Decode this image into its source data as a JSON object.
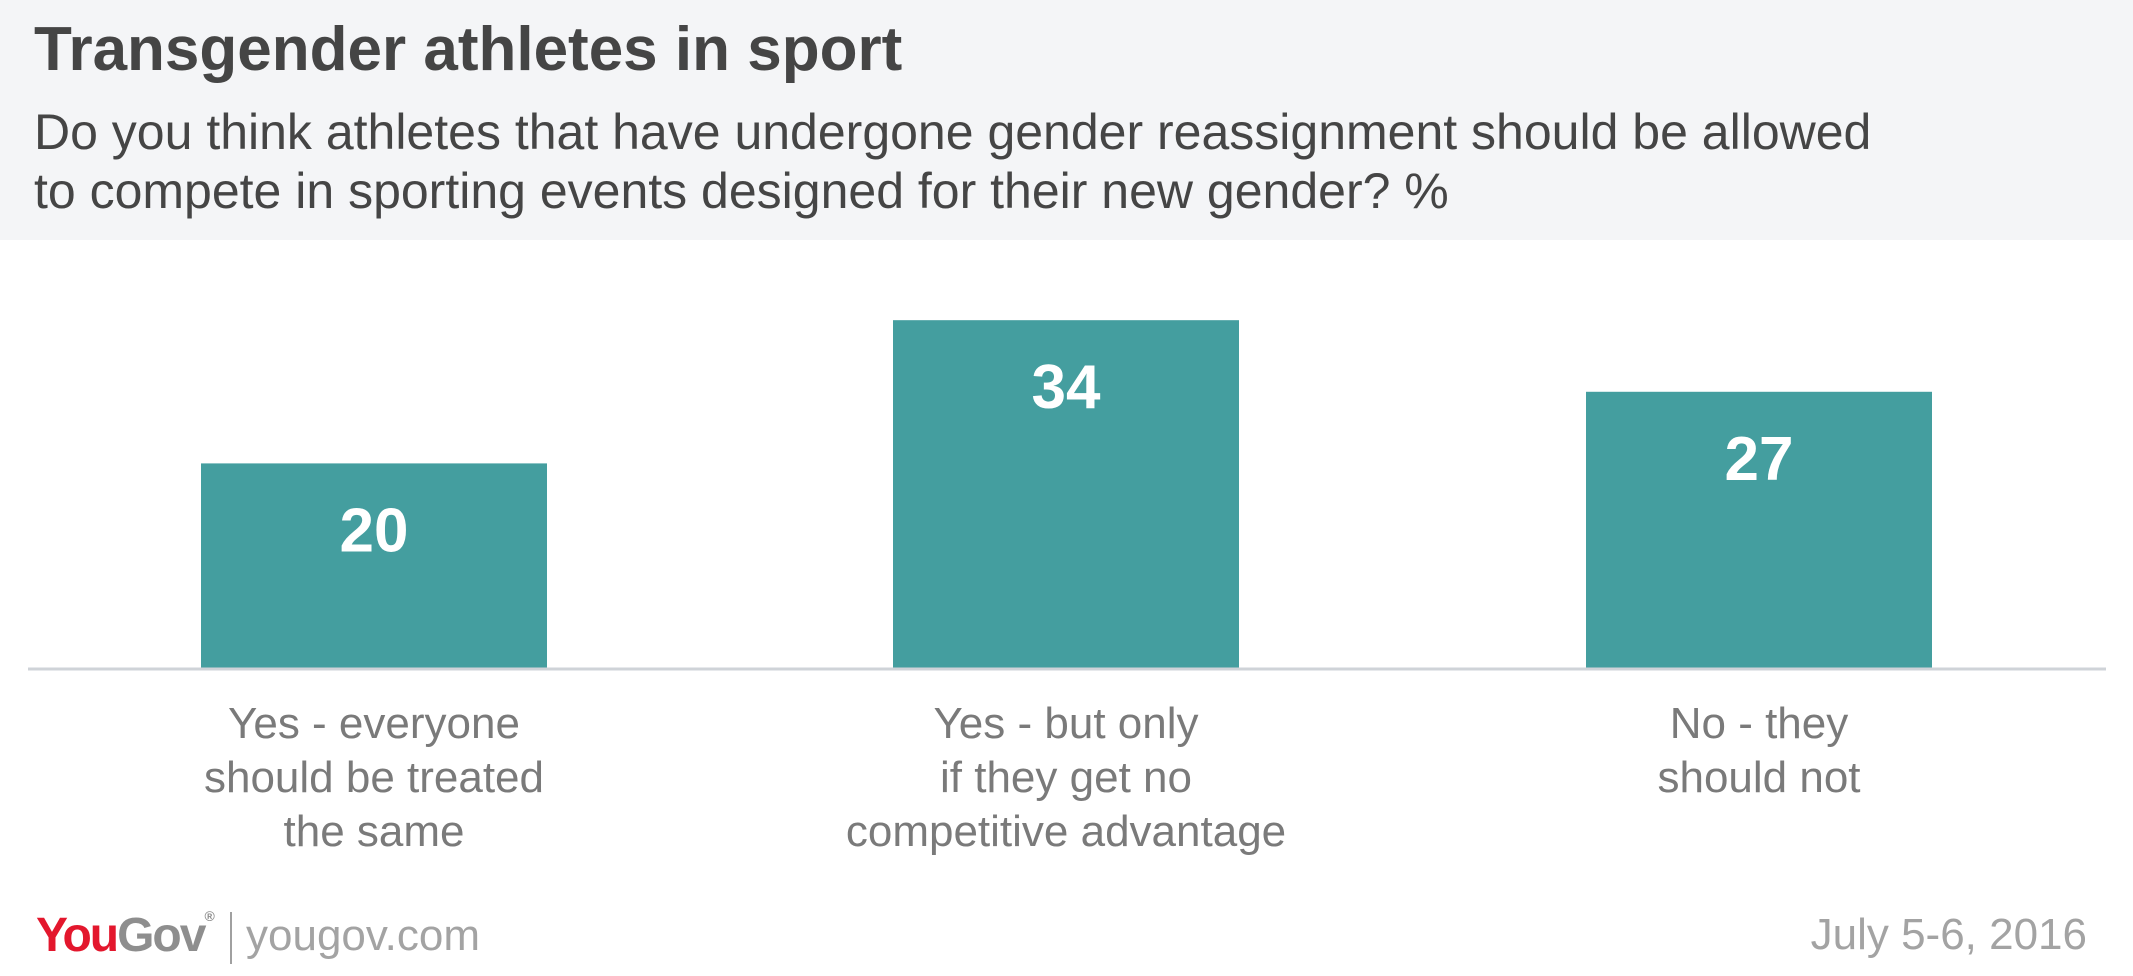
{
  "header": {
    "title": "Transgender athletes in sport",
    "subtitle_lines": [
      "Do you think athletes that have undergone gender reassignment should be allowed",
      "to compete in sporting events designed for their new gender? %"
    ]
  },
  "chart_data": {
    "type": "bar",
    "categories": [
      [
        "Yes - everyone",
        "should be treated",
        "the same"
      ],
      [
        "Yes - but only",
        "if they get no",
        "competitive advantage"
      ],
      [
        "No - they",
        "should not"
      ]
    ],
    "values": [
      20,
      34,
      27
    ],
    "title": "Transgender athletes in sport",
    "subtitle": "Do you think athletes that have undergone gender reassignment should be allowed to compete in sporting events designed for their new gender? %",
    "xlabel": "",
    "ylabel": "",
    "grid": false,
    "data_labels": true,
    "colors": {
      "bar": "#449e9f",
      "bar_label": "#ffffff",
      "axis": "#cfd3d8",
      "category_label": "#7a7a7a"
    }
  },
  "footer": {
    "logo_you": "You",
    "logo_gov": "Gov",
    "logo_mark": "®",
    "url": "yougov.com",
    "date": "July 5-6, 2016"
  }
}
